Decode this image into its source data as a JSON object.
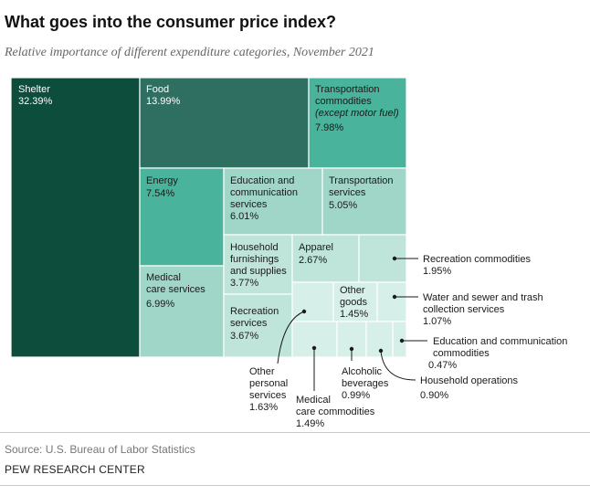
{
  "header": {
    "title": "What goes into the consumer price index?",
    "subtitle": "Relative importance of different expenditure categories, November 2021"
  },
  "footer": {
    "source": "Source: U.S. Bureau of Labor Statistics",
    "org": "PEW RESEARCH CENTER"
  },
  "colors": {
    "darkest": "#0c4d3c",
    "dark": "#2f6f62",
    "medium": "#49b39b",
    "light": "#9fd6c8",
    "lighter": "#bfe5db",
    "lightest": "#d6efe8",
    "inside_text_dark": "#ffffff",
    "inside_text_light": "#1a1a1a"
  },
  "chart_data": {
    "type": "treemap",
    "unit": "%",
    "items": [
      {
        "name": "Shelter",
        "value": 32.39,
        "label": "32.39%"
      },
      {
        "name": "Food",
        "value": 13.99,
        "label": "13.99%"
      },
      {
        "name": "Transportation commodities (except motor fuel)",
        "value": 7.98,
        "label": "7.98%"
      },
      {
        "name": "Energy",
        "value": 7.54,
        "label": "7.54%"
      },
      {
        "name": "Education and communication services",
        "value": 6.01,
        "label": "6.01%"
      },
      {
        "name": "Transportation services",
        "value": 5.05,
        "label": "5.05%"
      },
      {
        "name": "Medical care services",
        "value": 6.99,
        "label": "6.99%"
      },
      {
        "name": "Household furnishings and supplies",
        "value": 3.77,
        "label": "3.77%"
      },
      {
        "name": "Apparel",
        "value": 2.67,
        "label": "2.67%"
      },
      {
        "name": "Recreation commodities",
        "value": 1.95,
        "label": "1.95%"
      },
      {
        "name": "Other goods",
        "value": 1.45,
        "label": "1.45%"
      },
      {
        "name": "Water and sewer and trash collection services",
        "value": 1.07,
        "label": "1.07%"
      },
      {
        "name": "Recreation services",
        "value": 3.67,
        "label": "3.67%"
      },
      {
        "name": "Other personal services",
        "value": 1.63,
        "label": "1.63%"
      },
      {
        "name": "Medical care commodities",
        "value": 1.49,
        "label": "1.49%"
      },
      {
        "name": "Alcoholic beverages",
        "value": 0.99,
        "label": "0.99%"
      },
      {
        "name": "Household operations",
        "value": 0.9,
        "label": "0.90%"
      },
      {
        "name": "Education and communication commodities",
        "value": 0.47,
        "label": "0.47%"
      }
    ]
  },
  "labels": {
    "shelter": [
      "Shelter"
    ],
    "food": [
      "Food"
    ],
    "transport_commodities": [
      "Transportation",
      "commodities"
    ],
    "transport_commodities_note": "(except motor fuel)",
    "energy": [
      "Energy"
    ],
    "edu_comm_services": [
      "Education and",
      "communication",
      "services"
    ],
    "transport_services": [
      "Transportation",
      "services"
    ],
    "medical_services": [
      "Medical",
      "care services"
    ],
    "household_furnishings": [
      "Household",
      "furnishings",
      "and supplies"
    ],
    "apparel": [
      "Apparel"
    ],
    "other_goods": [
      "Other",
      "goods"
    ],
    "recreation_services": [
      "Recreation",
      "services"
    ],
    "recreation_commodities": [
      "Recreation commodities"
    ],
    "water_sewer": [
      "Water and sewer and trash",
      "collection services"
    ],
    "edu_comm_commodities": [
      "Education and communication",
      "commodities"
    ],
    "household_operations": [
      "Household operations"
    ],
    "alcoholic_beverages": [
      "Alcoholic",
      "beverages"
    ],
    "medical_commodities": [
      "Medical",
      "care commodities"
    ],
    "other_personal": [
      "Other",
      "personal",
      "services"
    ]
  }
}
